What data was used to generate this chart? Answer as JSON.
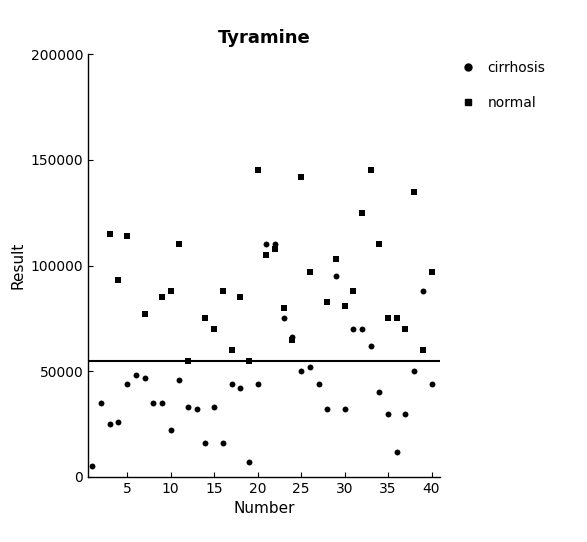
{
  "title": "Tyramine",
  "xlabel": "Number",
  "ylabel": "Result",
  "threshold_y": 55000,
  "ylim": [
    0,
    200000
  ],
  "xlim": [
    0.5,
    41
  ],
  "yticks": [
    0,
    50000,
    100000,
    150000,
    200000
  ],
  "xticks": [
    5,
    10,
    15,
    20,
    25,
    30,
    35,
    40
  ],
  "cirrhosis_x": [
    1,
    2,
    3,
    4,
    5,
    6,
    7,
    8,
    9,
    10,
    11,
    12,
    13,
    14,
    15,
    16,
    17,
    18,
    19,
    20,
    21,
    22,
    23,
    24,
    25,
    26,
    27,
    28,
    29,
    30,
    31,
    32,
    33,
    34,
    35,
    36,
    37,
    38,
    39,
    40
  ],
  "cirrhosis_y": [
    5000,
    35000,
    25000,
    26000,
    44000,
    48000,
    47000,
    35000,
    35000,
    22000,
    46000,
    33000,
    32000,
    16000,
    33000,
    16000,
    44000,
    42000,
    7000,
    44000,
    110000,
    110000,
    75000,
    66000,
    50000,
    52000,
    44000,
    32000,
    95000,
    32000,
    70000,
    70000,
    62000,
    40000,
    30000,
    12000,
    30000,
    50000,
    88000,
    44000
  ],
  "normal_x": [
    3,
    4,
    5,
    7,
    9,
    10,
    11,
    12,
    14,
    15,
    16,
    17,
    18,
    19,
    20,
    21,
    22,
    23,
    24,
    25,
    26,
    28,
    29,
    30,
    31,
    32,
    33,
    34,
    35,
    36,
    37,
    38,
    39,
    40
  ],
  "normal_y": [
    115000,
    93000,
    114000,
    77000,
    85000,
    88000,
    110000,
    55000,
    75000,
    70000,
    88000,
    60000,
    85000,
    55000,
    145000,
    105000,
    108000,
    80000,
    65000,
    142000,
    97000,
    83000,
    103000,
    81000,
    88000,
    125000,
    145000,
    110000,
    75000,
    75000,
    70000,
    135000,
    60000,
    97000
  ],
  "cirrhosis_color": "#000000",
  "normal_color": "#000000",
  "threshold_color": "#000000",
  "background_color": "#ffffff",
  "title_fontsize": 13,
  "label_fontsize": 11,
  "tick_fontsize": 10,
  "legend_fontsize": 10
}
